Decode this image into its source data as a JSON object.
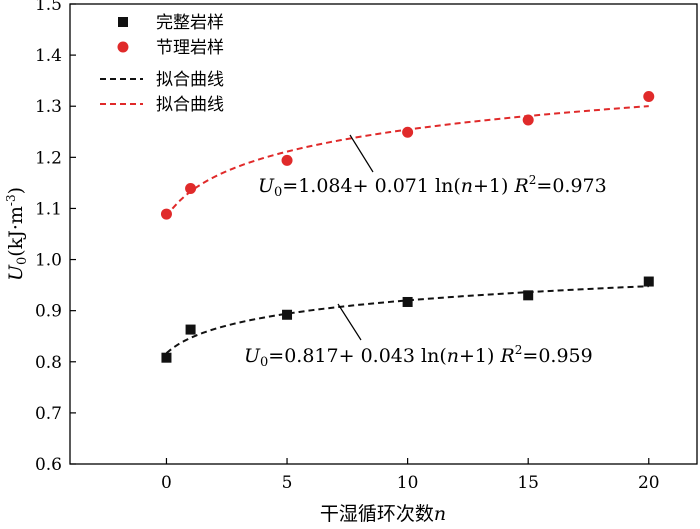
{
  "chart_data": {
    "type": "scatter",
    "xlabel": "干湿循环次数",
    "xlabel_var": "n",
    "ylabel_sym": "U",
    "ylabel_sub": "0",
    "ylabel_unit": "(kJ·m",
    "ylabel_unit_exp": "-3",
    "ylabel_unit_close": ")",
    "xlim": [
      -4,
      22
    ],
    "ylim": [
      0.6,
      1.5
    ],
    "xticks": [
      0,
      5,
      10,
      15,
      20
    ],
    "yticks": [
      0.6,
      0.7,
      0.8,
      0.9,
      1.0,
      1.1,
      1.2,
      1.3,
      1.4,
      1.5
    ],
    "legend_position": "top-left",
    "series": [
      {
        "name": "完整岩样",
        "kind": "points",
        "marker": "square",
        "color": "#111111",
        "x": [
          0,
          1,
          5,
          10,
          15,
          20
        ],
        "y": [
          0.808,
          0.863,
          0.892,
          0.917,
          0.93,
          0.957
        ]
      },
      {
        "name": "节理岩样",
        "kind": "points",
        "marker": "circle",
        "color": "#e02a2a",
        "x": [
          0,
          1,
          5,
          10,
          15,
          20
        ],
        "y": [
          1.089,
          1.139,
          1.194,
          1.249,
          1.273,
          1.319
        ]
      },
      {
        "name": "拟合曲线",
        "kind": "fit",
        "color": "#111111",
        "a": 0.817,
        "b": 0.043
      },
      {
        "name": "拟合曲线",
        "kind": "fit",
        "color": "#e02a2a",
        "a": 1.084,
        "b": 0.071
      }
    ],
    "annotations": [
      {
        "sym": "U",
        "sub": "0",
        "eq": "=1.084+ 0.071 ln(",
        "var": "n",
        "tail": "+1) ",
        "r_sym": "R",
        "r_exp": "2",
        "r_val": "=0.973",
        "color": "#e02a2a"
      },
      {
        "sym": "U",
        "sub": "0",
        "eq": "=0.817+ 0.043 ln(",
        "var": "n",
        "tail": "+1) ",
        "r_sym": "R",
        "r_exp": "2",
        "r_val": "=0.959",
        "color": "#111111"
      }
    ]
  }
}
